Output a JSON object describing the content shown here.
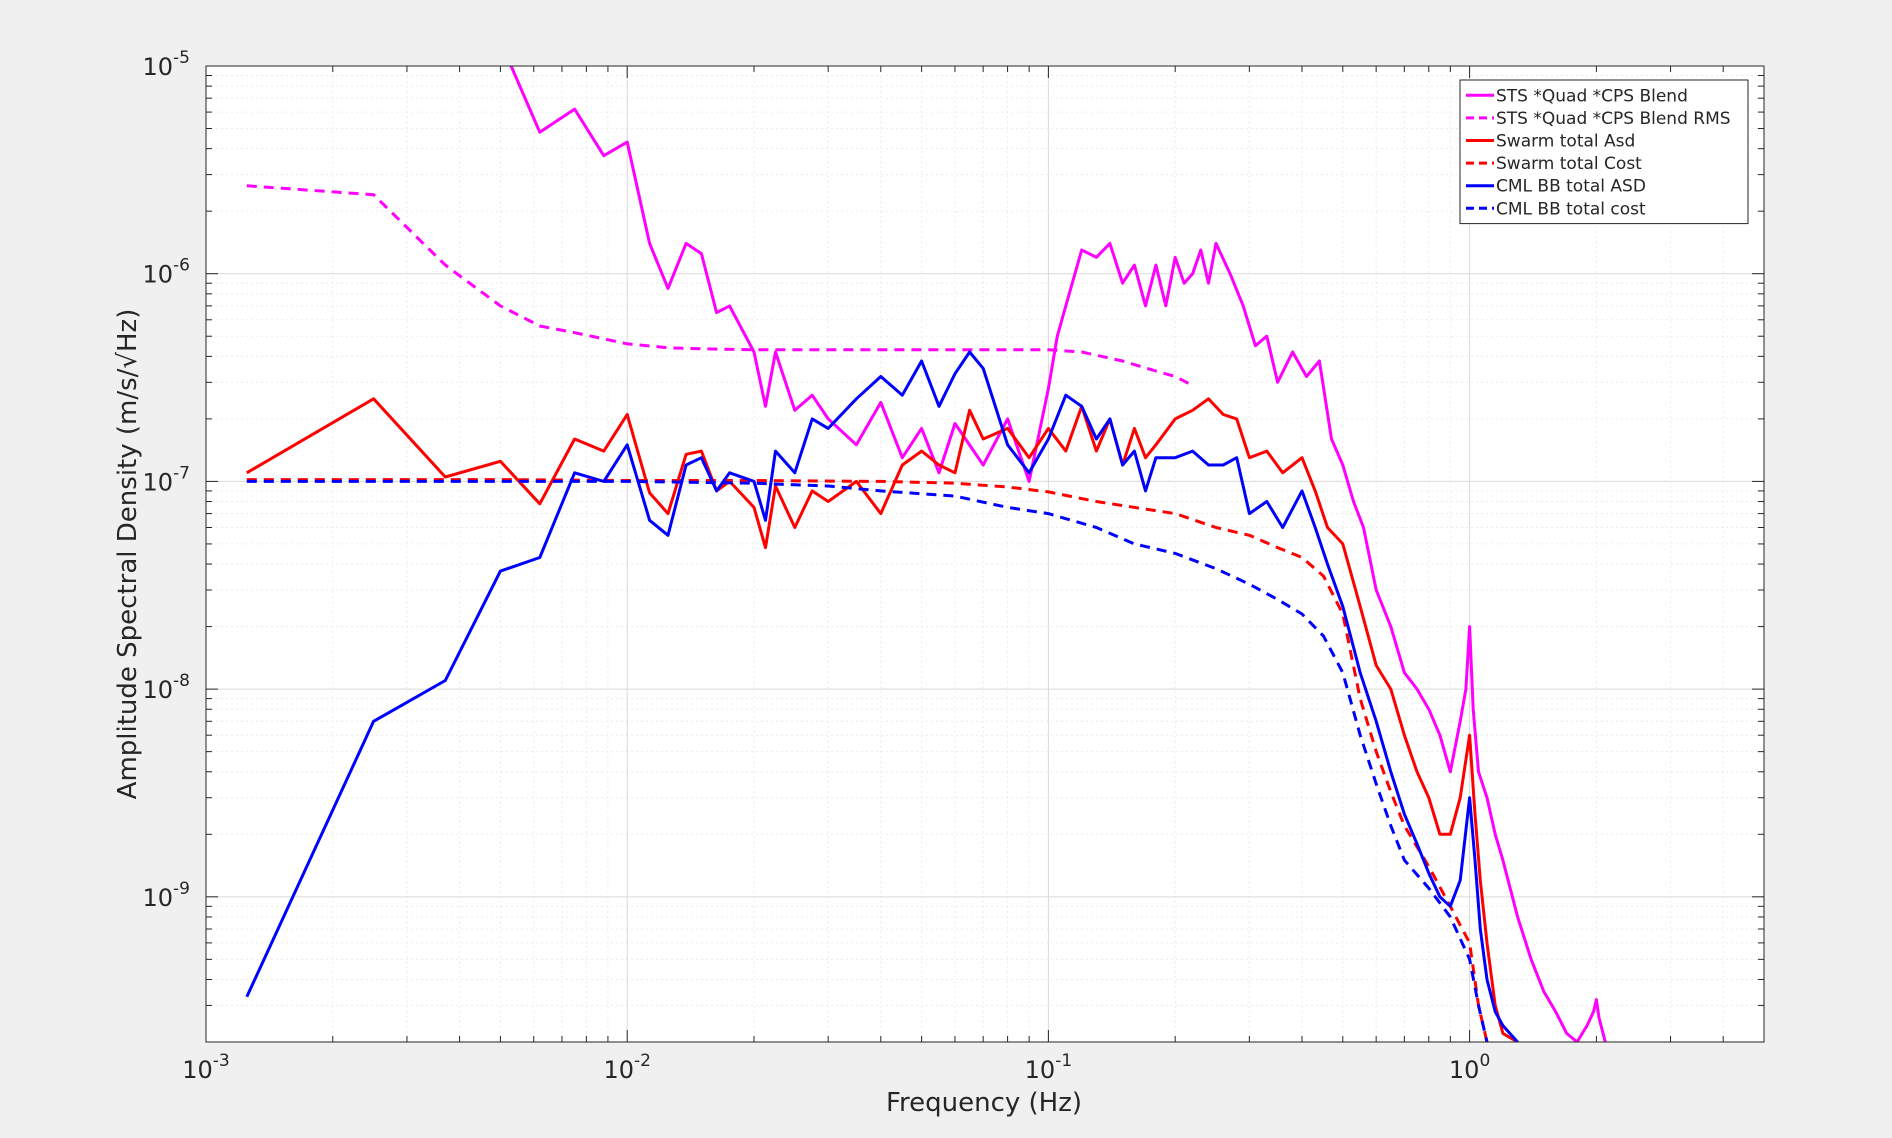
{
  "chart_data": {
    "type": "line",
    "title": "",
    "xlabel": "Frequency (Hz)",
    "ylabel": "Amplitude Spectral Density (m/s/√Hz)",
    "xscale": "log",
    "yscale": "log",
    "xlim": [
      0.001,
      5
    ],
    "ylim": [
      2e-10,
      1e-05
    ],
    "grid": true,
    "legend_position": "top-right",
    "x_ticks": [
      {
        "value": 0.001,
        "base": "10",
        "exp": "-3"
      },
      {
        "value": 0.01,
        "base": "10",
        "exp": "-2"
      },
      {
        "value": 0.1,
        "base": "10",
        "exp": "-1"
      },
      {
        "value": 1,
        "base": "10",
        "exp": "0"
      }
    ],
    "y_ticks": [
      {
        "value": 1e-05,
        "base": "10",
        "exp": "-5"
      },
      {
        "value": 1e-06,
        "base": "10",
        "exp": "-6"
      },
      {
        "value": 1e-07,
        "base": "10",
        "exp": "-7"
      },
      {
        "value": 1e-08,
        "base": "10",
        "exp": "-8"
      },
      {
        "value": 1e-09,
        "base": "10",
        "exp": "-9"
      }
    ],
    "series": [
      {
        "name": "STS *Quad *CPS Blend",
        "color": "#ff00ff",
        "dash": "solid",
        "x": [
          0.0053,
          0.0062,
          0.0075,
          0.0088,
          0.01,
          0.0113,
          0.0125,
          0.0138,
          0.015,
          0.0163,
          0.0175,
          0.02,
          0.0213,
          0.0225,
          0.025,
          0.0275,
          0.03,
          0.035,
          0.04,
          0.045,
          0.05,
          0.055,
          0.06,
          0.07,
          0.08,
          0.09,
          0.1,
          0.105,
          0.11,
          0.12,
          0.13,
          0.14,
          0.15,
          0.16,
          0.17,
          0.18,
          0.19,
          0.2,
          0.21,
          0.22,
          0.23,
          0.24,
          0.25,
          0.27,
          0.29,
          0.31,
          0.33,
          0.35,
          0.38,
          0.41,
          0.44,
          0.47,
          0.5,
          0.53,
          0.56,
          0.6,
          0.65,
          0.7,
          0.75,
          0.8,
          0.85,
          0.9,
          0.95,
          0.98,
          1.0,
          1.02,
          1.05,
          1.1,
          1.15,
          1.2,
          1.3,
          1.4,
          1.5,
          1.6,
          1.7,
          1.8,
          1.9,
          1.97,
          2.0,
          2.03,
          2.1
        ],
        "y": [
          1e-05,
          4.8e-06,
          6.2e-06,
          3.7e-06,
          4.3e-06,
          1.4e-06,
          8.5e-07,
          1.4e-06,
          1.25e-06,
          6.5e-07,
          7e-07,
          4.2e-07,
          2.3e-07,
          4.2e-07,
          2.2e-07,
          2.6e-07,
          2e-07,
          1.5e-07,
          2.4e-07,
          1.3e-07,
          1.8e-07,
          1.1e-07,
          1.9e-07,
          1.2e-07,
          2e-07,
          1e-07,
          2.8e-07,
          5e-07,
          7e-07,
          1.3e-06,
          1.2e-06,
          1.4e-06,
          9e-07,
          1.1e-06,
          7e-07,
          1.1e-06,
          7e-07,
          1.2e-06,
          9e-07,
          1e-06,
          1.3e-06,
          9e-07,
          1.4e-06,
          1e-06,
          7e-07,
          4.5e-07,
          5e-07,
          3e-07,
          4.2e-07,
          3.2e-07,
          3.8e-07,
          1.6e-07,
          1.2e-07,
          8e-08,
          6e-08,
          3e-08,
          2e-08,
          1.2e-08,
          1e-08,
          8e-09,
          6e-09,
          4e-09,
          7e-09,
          1e-08,
          2e-08,
          8e-09,
          4e-09,
          3e-09,
          2e-09,
          1.5e-09,
          8e-10,
          5e-10,
          3.5e-10,
          2.8e-10,
          2.2e-10,
          2e-10,
          2.4e-10,
          2.8e-10,
          3.2e-10,
          2.6e-10,
          2e-10
        ]
      },
      {
        "name": "STS *Quad *CPS Blend RMS",
        "color": "#ff00ff",
        "dash": "dashed",
        "x": [
          0.00125,
          0.0025,
          0.0037,
          0.005,
          0.0062,
          0.0075,
          0.01,
          0.0125,
          0.015,
          0.02,
          0.03,
          0.05,
          0.08,
          0.1,
          0.12,
          0.15,
          0.18,
          0.2,
          0.22
        ],
        "y": [
          2.65e-06,
          2.4e-06,
          1.1e-06,
          7e-07,
          5.6e-07,
          5.2e-07,
          4.6e-07,
          4.4e-07,
          4.35e-07,
          4.3e-07,
          4.3e-07,
          4.3e-07,
          4.3e-07,
          4.3e-07,
          4.2e-07,
          3.8e-07,
          3.4e-07,
          3.2e-07,
          2.9e-07
        ]
      },
      {
        "name": "Swarm total Asd",
        "color": "#ff0000",
        "dash": "solid",
        "x": [
          0.00125,
          0.0025,
          0.0037,
          0.005,
          0.0062,
          0.0075,
          0.0088,
          0.01,
          0.0113,
          0.0125,
          0.0138,
          0.015,
          0.0163,
          0.0175,
          0.02,
          0.0213,
          0.0225,
          0.025,
          0.0275,
          0.03,
          0.035,
          0.04,
          0.045,
          0.05,
          0.055,
          0.06,
          0.065,
          0.07,
          0.08,
          0.09,
          0.1,
          0.11,
          0.12,
          0.13,
          0.14,
          0.15,
          0.16,
          0.17,
          0.18,
          0.2,
          0.22,
          0.24,
          0.26,
          0.28,
          0.3,
          0.33,
          0.36,
          0.4,
          0.43,
          0.46,
          0.5,
          0.55,
          0.6,
          0.65,
          0.7,
          0.75,
          0.8,
          0.85,
          0.9,
          0.95,
          1.0,
          1.03,
          1.06,
          1.1,
          1.15,
          1.2,
          1.3
        ],
        "y": [
          1.1e-07,
          2.5e-07,
          1.05e-07,
          1.25e-07,
          7.8e-08,
          1.6e-07,
          1.4e-07,
          2.1e-07,
          8.8e-08,
          7e-08,
          1.35e-07,
          1.4e-07,
          9e-08,
          1e-07,
          7.5e-08,
          4.8e-08,
          9.5e-08,
          6e-08,
          9e-08,
          8e-08,
          1e-07,
          7e-08,
          1.2e-07,
          1.4e-07,
          1.2e-07,
          1.1e-07,
          2.2e-07,
          1.6e-07,
          1.8e-07,
          1.3e-07,
          1.8e-07,
          1.4e-07,
          2.3e-07,
          1.4e-07,
          2e-07,
          1.2e-07,
          1.8e-07,
          1.3e-07,
          1.5e-07,
          2e-07,
          2.2e-07,
          2.5e-07,
          2.1e-07,
          2e-07,
          1.3e-07,
          1.4e-07,
          1.1e-07,
          1.3e-07,
          9e-08,
          6e-08,
          5e-08,
          2.5e-08,
          1.3e-08,
          1e-08,
          6e-09,
          4e-09,
          3e-09,
          2e-09,
          2e-09,
          3e-09,
          6e-09,
          2.5e-09,
          1.2e-09,
          6e-10,
          3e-10,
          2.2e-10,
          2e-10
        ]
      },
      {
        "name": "Swarm total Cost",
        "color": "#ff0000",
        "dash": "dashed",
        "x": [
          0.00125,
          0.005,
          0.01,
          0.02,
          0.04,
          0.06,
          0.08,
          0.1,
          0.13,
          0.16,
          0.2,
          0.25,
          0.3,
          0.35,
          0.4,
          0.45,
          0.5,
          0.55,
          0.6,
          0.65,
          0.7,
          0.8,
          0.9,
          1.0,
          1.05,
          1.1
        ],
        "y": [
          1.02e-07,
          1.02e-07,
          1.01e-07,
          1.01e-07,
          1e-07,
          9.8e-08,
          9.4e-08,
          8.9e-08,
          8e-08,
          7.5e-08,
          7e-08,
          6e-08,
          5.5e-08,
          4.8e-08,
          4.3e-08,
          3.5e-08,
          2.3e-08,
          9e-09,
          5e-09,
          3.2e-09,
          2.2e-09,
          1.4e-09,
          9e-10,
          6e-10,
          3e-10,
          2e-10
        ]
      },
      {
        "name": "CML BB total ASD",
        "color": "#0000ff",
        "dash": "solid",
        "x": [
          0.00125,
          0.0025,
          0.0037,
          0.005,
          0.0062,
          0.0075,
          0.0088,
          0.01,
          0.0113,
          0.0125,
          0.0138,
          0.015,
          0.0163,
          0.0175,
          0.02,
          0.0213,
          0.0225,
          0.025,
          0.0275,
          0.03,
          0.035,
          0.04,
          0.045,
          0.05,
          0.055,
          0.06,
          0.065,
          0.07,
          0.08,
          0.09,
          0.1,
          0.11,
          0.12,
          0.13,
          0.14,
          0.15,
          0.16,
          0.17,
          0.18,
          0.2,
          0.22,
          0.24,
          0.26,
          0.28,
          0.3,
          0.33,
          0.36,
          0.4,
          0.43,
          0.46,
          0.5,
          0.55,
          0.6,
          0.65,
          0.7,
          0.75,
          0.8,
          0.85,
          0.9,
          0.95,
          1.0,
          1.03,
          1.06,
          1.1,
          1.15,
          1.2,
          1.3
        ],
        "y": [
          3.3e-10,
          7e-09,
          1.1e-08,
          3.7e-08,
          4.3e-08,
          1.1e-07,
          1e-07,
          1.5e-07,
          6.5e-08,
          5.5e-08,
          1.2e-07,
          1.3e-07,
          9e-08,
          1.1e-07,
          1e-07,
          6.5e-08,
          1.4e-07,
          1.1e-07,
          2e-07,
          1.8e-07,
          2.5e-07,
          3.2e-07,
          2.6e-07,
          3.8e-07,
          2.3e-07,
          3.3e-07,
          4.2e-07,
          3.5e-07,
          1.5e-07,
          1.1e-07,
          1.6e-07,
          2.6e-07,
          2.3e-07,
          1.6e-07,
          2e-07,
          1.2e-07,
          1.4e-07,
          9e-08,
          1.3e-07,
          1.3e-07,
          1.4e-07,
          1.2e-07,
          1.2e-07,
          1.3e-07,
          7e-08,
          8e-08,
          6e-08,
          9e-08,
          6e-08,
          4e-08,
          2.5e-08,
          1.2e-08,
          7e-09,
          4e-09,
          2.5e-09,
          1.8e-09,
          1.3e-09,
          1e-09,
          9e-10,
          1.2e-09,
          3e-09,
          1.5e-09,
          7e-10,
          4e-10,
          2.8e-10,
          2.4e-10,
          2e-10
        ]
      },
      {
        "name": "CML BB total cost",
        "color": "#0000ff",
        "dash": "dashed",
        "x": [
          0.00125,
          0.005,
          0.01,
          0.02,
          0.03,
          0.04,
          0.06,
          0.08,
          0.1,
          0.13,
          0.16,
          0.2,
          0.25,
          0.3,
          0.35,
          0.4,
          0.45,
          0.5,
          0.55,
          0.6,
          0.65,
          0.7,
          0.8,
          0.9,
          1.0,
          1.05,
          1.1
        ],
        "y": [
          1e-07,
          1e-07,
          1e-07,
          9.8e-08,
          9.5e-08,
          9e-08,
          8.5e-08,
          7.5e-08,
          7e-08,
          6e-08,
          5e-08,
          4.5e-08,
          3.8e-08,
          3.2e-08,
          2.7e-08,
          2.3e-08,
          1.8e-08,
          1.2e-08,
          6e-09,
          3.5e-09,
          2.2e-09,
          1.5e-09,
          1.1e-09,
          8e-10,
          5e-10,
          3e-10,
          2e-10
        ]
      }
    ]
  }
}
